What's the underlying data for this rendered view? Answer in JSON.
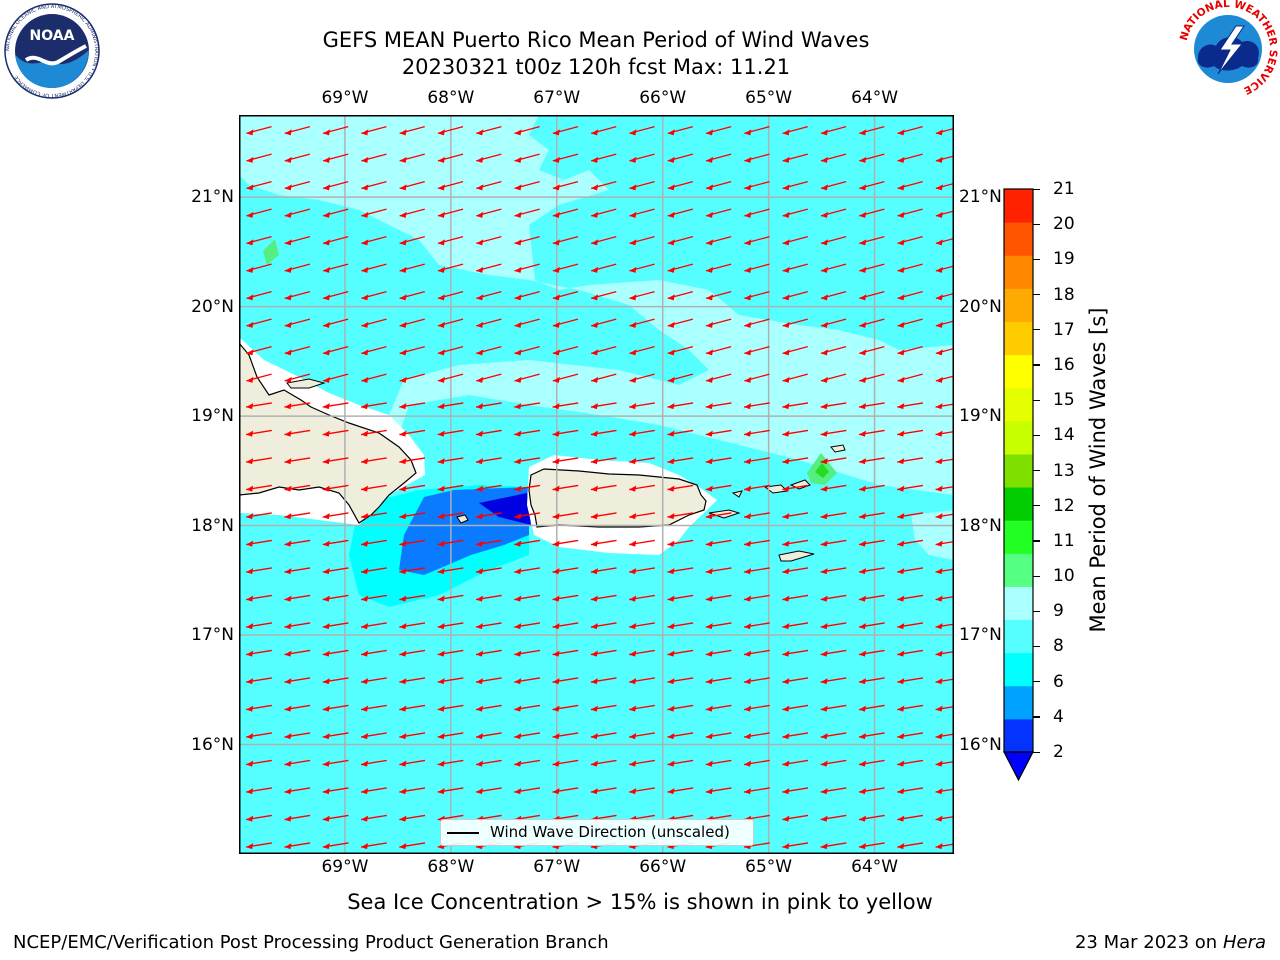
{
  "header": {
    "title_line1": "GEFS MEAN Puerto Rico Mean Period of Wind Waves",
    "title_line2": "20230321 t00z 120h fcst   Max: 11.21"
  },
  "logos": {
    "left": "NOAA",
    "left_ring_text": "NATIONAL OCEANIC AND ATMOSPHERIC ADMINISTRATION • U.S. DEPARTMENT OF COMMERCE",
    "right_ring_text": "NATIONAL WEATHER SERVICE"
  },
  "map": {
    "lon_labels": [
      "69°W",
      "68°W",
      "67°W",
      "66°W",
      "65°W",
      "64°W"
    ],
    "lat_labels": [
      "21°N",
      "20°N",
      "19°N",
      "18°N",
      "17°N",
      "16°N"
    ],
    "lon_values": [
      -69,
      -68,
      -67,
      -66,
      -65,
      -64
    ],
    "lat_values": [
      21,
      20,
      19,
      18,
      17,
      16
    ],
    "extent": {
      "lon": [
        -70,
        -63.25
      ],
      "lat": [
        15,
        21.75
      ]
    },
    "ocean_color": "#55ffff",
    "land_color": "#efeedc",
    "arrow_color": "#ff0000",
    "grid": true
  },
  "legend": {
    "label": "Wind Wave Direction (unscaled)"
  },
  "colorbar": {
    "label": "Mean Period of Wind Waves [s]",
    "ticks": [
      "2",
      "4",
      "6",
      "8",
      "9",
      "10",
      "11",
      "12",
      "13",
      "14",
      "15",
      "16",
      "17",
      "18",
      "19",
      "20",
      "21"
    ],
    "colors": [
      "#0432ff",
      "#00a2ff",
      "#00ffff",
      "#55ffff",
      "#aaffff",
      "#55ff80",
      "#22ff22",
      "#00cc00",
      "#7fe000",
      "#c8ff00",
      "#e6ff00",
      "#ffff00",
      "#ffcc00",
      "#ffaa00",
      "#ff8800",
      "#ff5500",
      "#ff2200",
      "#ff0000"
    ],
    "extend_low_color": "#0000ff"
  },
  "footer": {
    "caption": "Sea Ice Concentration > 15% is shown in pink to yellow",
    "left": "NCEP/EMC/Verification Post Processing Product Generation Branch",
    "right_prefix": "23 Mar 2023 on",
    "right_host": "Hera"
  }
}
